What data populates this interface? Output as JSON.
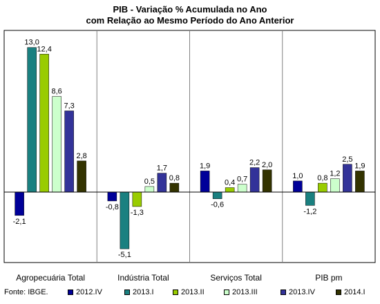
{
  "chart_data": {
    "type": "bar",
    "title": "PIB - Variação % Acumulada no Ano",
    "subtitle": "com Relação ao Mesmo Período do Ano Anterior",
    "categories": [
      "Agropecuária Total",
      "Indústria Total",
      "Serviços Total",
      "PIB pm"
    ],
    "series": [
      {
        "name": "2012.IV",
        "color": "#000099",
        "values": [
          -2.1,
          -0.8,
          1.9,
          1.0
        ]
      },
      {
        "name": "2013.I",
        "color": "#1a8080",
        "values": [
          13.0,
          -5.1,
          -0.6,
          -1.2
        ]
      },
      {
        "name": "2013.II",
        "color": "#99cc00",
        "values": [
          12.4,
          -1.3,
          0.4,
          0.8
        ]
      },
      {
        "name": "2013.III",
        "color": "#ccffcc",
        "values": [
          8.6,
          0.5,
          0.7,
          1.2
        ]
      },
      {
        "name": "2013.IV",
        "color": "#333399",
        "values": [
          7.3,
          1.7,
          2.2,
          2.5
        ]
      },
      {
        "name": "2014.I",
        "color": "#333300",
        "values": [
          2.8,
          0.8,
          2.0,
          1.9
        ]
      }
    ],
    "value_labels": [
      [
        "-2,1",
        "-0,8",
        "1,9",
        "1,0"
      ],
      [
        "13,0",
        "-5,1",
        "-0,6",
        "-1,2"
      ],
      [
        "12,4",
        "-1,3",
        "0,4",
        "0,8"
      ],
      [
        "8,6",
        "0,5",
        "0,7",
        "1,2"
      ],
      [
        "7,3",
        "1,7",
        "2,2",
        "2,5"
      ],
      [
        "2,8",
        "0,8",
        "2,0",
        "1,9"
      ]
    ],
    "ylim": [
      -6.5,
      14.5
    ],
    "grid": "vertical separators between categories",
    "legend_position": "bottom"
  },
  "source": "Fonte: IBGE."
}
